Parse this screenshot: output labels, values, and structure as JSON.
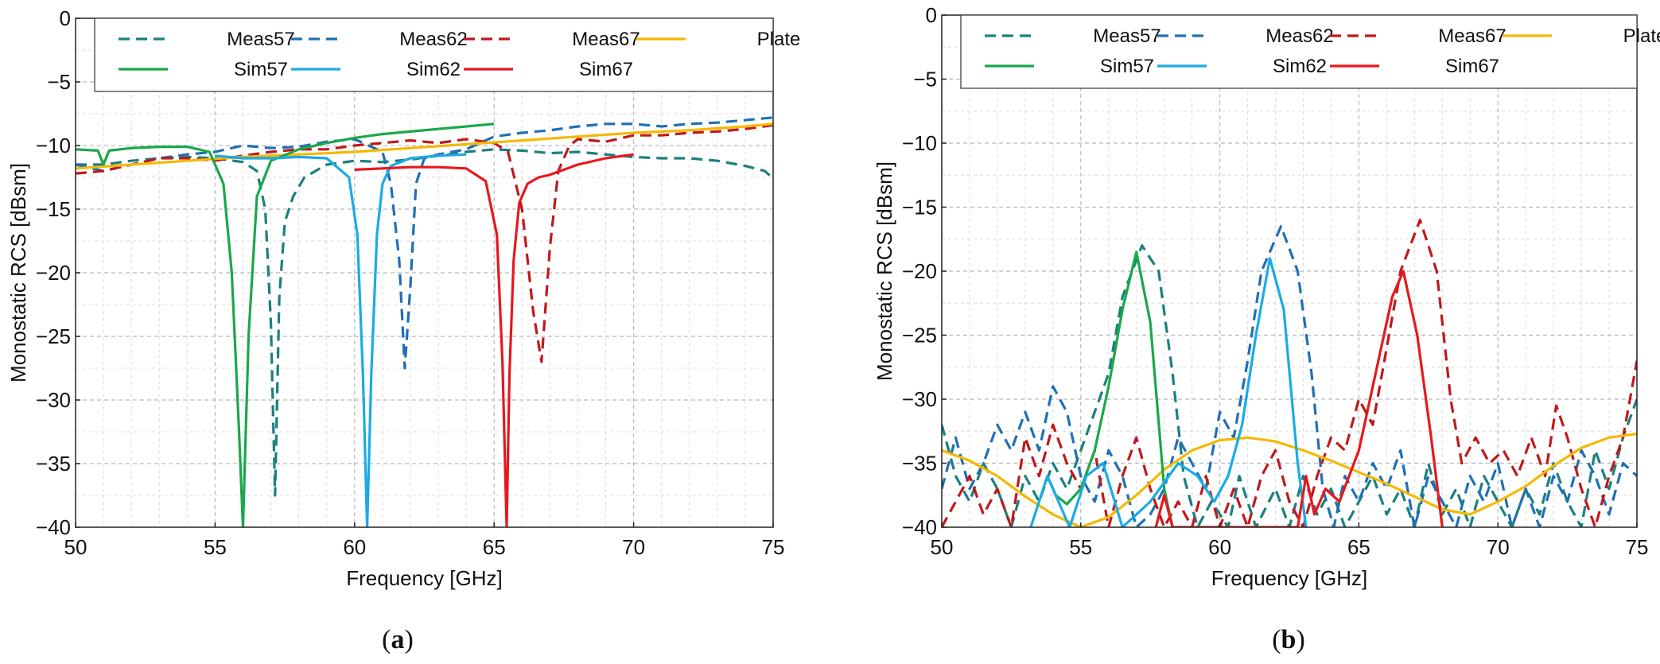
{
  "colors": {
    "meas57": "#1b7f7f",
    "meas62": "#1f6fb5",
    "meas67": "#c0181c",
    "sim57": "#1aa84a",
    "sim62": "#1aabe6",
    "sim67": "#e8171d",
    "plate": "#f5b800"
  },
  "chart_data": [
    {
      "type": "line",
      "panel_label": "a",
      "title": "",
      "xlabel": "Frequency [GHz]",
      "ylabel": "Monostatic RCS [dBsm]",
      "xlim": [
        50,
        75
      ],
      "ylim": [
        -40,
        0
      ],
      "xticks": [
        "50",
        "55",
        "60",
        "65",
        "70",
        "75"
      ],
      "yticks": [
        "0",
        "−5",
        "−10",
        "−15",
        "−20",
        "−25",
        "−30",
        "−35",
        "−40"
      ],
      "legend": [
        "Meas57",
        "Meas62",
        "Meas67",
        "Plate",
        "Sim57",
        "Sim62",
        "Sim67"
      ],
      "series": [
        {
          "name": "Meas57",
          "color_key": "meas57",
          "style": "dashed",
          "x": [
            50,
            51,
            52,
            53,
            54,
            55,
            56,
            56.5,
            56.8,
            57.0,
            57.15,
            57.3,
            57.5,
            57.8,
            58.2,
            59,
            60,
            61,
            62,
            63,
            64,
            65,
            66,
            67,
            68,
            69,
            70,
            71,
            72,
            73,
            74,
            74.7,
            75
          ],
          "y": [
            -11.5,
            -11.5,
            -11.2,
            -11,
            -10.9,
            -11,
            -11.3,
            -12,
            -15,
            -24,
            -37.5,
            -22,
            -16,
            -14,
            -12.5,
            -11.5,
            -11.2,
            -11.3,
            -11.1,
            -10.8,
            -10.5,
            -10.3,
            -10.4,
            -10.6,
            -10.5,
            -10.7,
            -10.9,
            -11,
            -11,
            -11.2,
            -11.6,
            -12,
            -12.6
          ]
        },
        {
          "name": "Meas62",
          "color_key": "meas62",
          "style": "dashed",
          "x": [
            50,
            51,
            52,
            53,
            54,
            55,
            56,
            57,
            58,
            59,
            60,
            61,
            61.3,
            61.6,
            61.8,
            62.0,
            62.2,
            62.5,
            63,
            64,
            65,
            66,
            67,
            68,
            69,
            70,
            71,
            72,
            73,
            74,
            75
          ],
          "y": [
            -11.5,
            -12,
            -11.5,
            -11,
            -10.7,
            -10.5,
            -10,
            -10.2,
            -10.1,
            -9.7,
            -9.5,
            -10.5,
            -13,
            -19,
            -27.5,
            -21,
            -13,
            -11,
            -10.7,
            -10.3,
            -9.3,
            -9,
            -8.8,
            -8.5,
            -8.3,
            -8.3,
            -8.5,
            -8.3,
            -8.2,
            -8.0,
            -7.8
          ]
        },
        {
          "name": "Meas67",
          "color_key": "meas67",
          "style": "dashed",
          "x": [
            50,
            51,
            52,
            53,
            54,
            55,
            56,
            57,
            58,
            59,
            60,
            61,
            62,
            63,
            64,
            65,
            65.5,
            66,
            66.4,
            66.7,
            67.0,
            67.3,
            67.7,
            68,
            69,
            70,
            71,
            72,
            73,
            74,
            75
          ],
          "y": [
            -12.2,
            -12,
            -11.5,
            -11,
            -11,
            -11.2,
            -10.8,
            -10.5,
            -10.3,
            -10.3,
            -10,
            -9.8,
            -9.6,
            -9.8,
            -9.5,
            -9.8,
            -10.5,
            -15,
            -23,
            -27,
            -18,
            -12,
            -10,
            -9.5,
            -9.7,
            -9.2,
            -9.2,
            -9.0,
            -8.9,
            -8.7,
            -8.4
          ]
        },
        {
          "name": "Plate",
          "color_key": "plate",
          "style": "solid",
          "x": [
            50,
            52,
            54,
            56,
            58,
            60,
            62,
            64,
            66,
            68,
            70,
            72,
            74,
            75
          ],
          "y": [
            -11.8,
            -11.5,
            -11.2,
            -10.9,
            -10.7,
            -10.5,
            -10.2,
            -9.9,
            -9.6,
            -9.3,
            -9,
            -8.8,
            -8.5,
            -8.3
          ]
        },
        {
          "name": "Sim57",
          "color_key": "sim57",
          "style": "solid",
          "x": [
            50,
            50.8,
            51.0,
            51.2,
            52,
            53,
            54,
            54.8,
            55.3,
            55.6,
            55.85,
            56.0,
            56.2,
            56.5,
            57,
            58,
            59,
            60,
            61,
            62,
            63,
            64,
            65
          ],
          "y": [
            -10.3,
            -10.4,
            -11.5,
            -10.4,
            -10.2,
            -10.1,
            -10.1,
            -10.5,
            -13,
            -20,
            -32,
            -40,
            -25,
            -14,
            -11.2,
            -10.3,
            -9.8,
            -9.4,
            -9.1,
            -8.9,
            -8.7,
            -8.5,
            -8.3
          ]
        },
        {
          "name": "Sim62",
          "color_key": "sim62",
          "style": "solid",
          "x": [
            55,
            56,
            57,
            58,
            59,
            59.8,
            60.1,
            60.3,
            60.45,
            60.6,
            60.8,
            61.0,
            61.3,
            62,
            63,
            64
          ],
          "y": [
            -10.8,
            -11,
            -11,
            -10.9,
            -11,
            -12.5,
            -17,
            -28,
            -40,
            -28,
            -17,
            -13,
            -11.6,
            -11,
            -10.8,
            -10.7
          ]
        },
        {
          "name": "Sim67",
          "color_key": "sim67",
          "style": "solid",
          "x": [
            60,
            61,
            62,
            63,
            64,
            64.7,
            65.1,
            65.3,
            65.45,
            65.55,
            65.7,
            65.9,
            66.2,
            66.6,
            67,
            67.5,
            68,
            69,
            70
          ],
          "y": [
            -11.9,
            -11.8,
            -11.7,
            -11.7,
            -11.8,
            -12.8,
            -17,
            -27,
            -40,
            -28,
            -19,
            -14.5,
            -13,
            -12.5,
            -12.3,
            -11.9,
            -11.5,
            -11.0,
            -10.7
          ]
        }
      ]
    },
    {
      "type": "line",
      "panel_label": "b",
      "title": "",
      "xlabel": "Frequency [GHz]",
      "ylabel": "Monostatic RCS [dBsm]",
      "xlim": [
        50,
        75
      ],
      "ylim": [
        -40,
        0
      ],
      "xticks": [
        "50",
        "55",
        "60",
        "65",
        "70",
        "75"
      ],
      "yticks": [
        "0",
        "−5",
        "−10",
        "−15",
        "−20",
        "−25",
        "−30",
        "−35",
        "−40"
      ],
      "legend": [
        "Meas57",
        "Meas62",
        "Meas67",
        "Plate",
        "Sim57",
        "Sim62",
        "Sim67"
      ],
      "series": [
        {
          "name": "Meas57",
          "color_key": "meas57",
          "style": "dashed",
          "x": [
            50,
            50.5,
            51,
            51.5,
            52,
            52.5,
            53,
            53.5,
            54,
            54.5,
            55,
            55.5,
            56,
            56.5,
            57.2,
            57.8,
            58.3,
            58.7,
            59.2,
            59.7,
            60.3,
            60.7,
            61.3,
            62,
            62.5,
            63,
            63.5,
            64,
            64.5,
            65,
            65.5,
            66,
            66.5,
            67,
            67.5,
            68,
            68.5,
            69,
            69.5,
            70,
            70.5,
            71,
            71.5,
            72,
            72.5,
            73,
            73.5,
            74,
            74.5,
            75
          ],
          "y": [
            -32,
            -36,
            -38,
            -35,
            -37,
            -40,
            -36,
            -38,
            -35,
            -37,
            -34,
            -31,
            -28,
            -22,
            -18,
            -20,
            -28,
            -36,
            -40,
            -38,
            -40,
            -36,
            -40,
            -37,
            -40,
            -36,
            -39,
            -37,
            -40,
            -38,
            -36,
            -39,
            -37,
            -40,
            -35,
            -39,
            -37,
            -40,
            -36,
            -38,
            -40,
            -37,
            -39,
            -35,
            -38,
            -40,
            -34,
            -37,
            -33,
            -30
          ]
        },
        {
          "name": "Meas62",
          "color_key": "meas62",
          "style": "dashed",
          "x": [
            50,
            50.5,
            51,
            51.5,
            52,
            52.5,
            53,
            53.5,
            54,
            54.5,
            55,
            55.5,
            56,
            56.5,
            57,
            57.5,
            58,
            58.5,
            59,
            59.5,
            60,
            60.5,
            61,
            61.5,
            62.2,
            62.8,
            63.3,
            63.7,
            64.1,
            64.5,
            65,
            65.5,
            66,
            66.5,
            67,
            67.5,
            68,
            68.5,
            69,
            69.5,
            70,
            70.5,
            71,
            71.5,
            72,
            72.5,
            73,
            73.5,
            74,
            74.5,
            75
          ],
          "y": [
            -37,
            -33,
            -37,
            -35,
            -32,
            -34,
            -31,
            -34,
            -29,
            -31,
            -36,
            -38,
            -34,
            -36,
            -40,
            -39,
            -37,
            -33,
            -35,
            -37,
            -31,
            -33,
            -27,
            -20,
            -16.5,
            -20,
            -28,
            -37,
            -40,
            -36,
            -38,
            -35,
            -37,
            -34,
            -40,
            -36,
            -38,
            -40,
            -36,
            -38,
            -35,
            -40,
            -37,
            -40,
            -36,
            -38,
            -34,
            -36,
            -39,
            -35,
            -36
          ]
        },
        {
          "name": "Meas67",
          "color_key": "meas67",
          "style": "dashed",
          "x": [
            50,
            50.5,
            51,
            51.5,
            52,
            52.5,
            53,
            53.5,
            54,
            54.5,
            55,
            55.5,
            56,
            56.5,
            57,
            57.5,
            58,
            58.5,
            59,
            59.5,
            60,
            60.5,
            61,
            61.5,
            62,
            62.5,
            63,
            63.5,
            64,
            64.5,
            65,
            65.5,
            66,
            66.5,
            67.2,
            67.8,
            68.3,
            68.7,
            69.2,
            69.7,
            70.2,
            70.7,
            71.2,
            71.7,
            72.1,
            72.5,
            73,
            73.5,
            74,
            74.5,
            75
          ],
          "y": [
            -40,
            -38,
            -36,
            -39,
            -37,
            -40,
            -33,
            -36,
            -32,
            -35,
            -37,
            -34,
            -40,
            -36,
            -33,
            -37,
            -40,
            -38,
            -40,
            -36,
            -40,
            -37,
            -40,
            -36,
            -34,
            -38,
            -40,
            -36,
            -33,
            -34,
            -30,
            -32,
            -26,
            -20,
            -16,
            -20,
            -30,
            -35,
            -33,
            -35,
            -34,
            -36,
            -33,
            -36,
            -30.5,
            -33,
            -37,
            -40,
            -36,
            -33,
            -27
          ]
        },
        {
          "name": "Plate",
          "color_key": "plate",
          "style": "solid",
          "x": [
            50,
            51,
            52,
            53,
            54,
            55,
            56,
            57,
            58,
            59,
            60,
            61,
            62,
            63,
            64,
            65,
            66,
            67,
            68,
            69,
            70,
            71,
            72,
            73,
            74,
            75
          ],
          "y": [
            -34,
            -34.8,
            -36,
            -37.6,
            -39,
            -40,
            -39.2,
            -37.5,
            -35.5,
            -34,
            -33.2,
            -33,
            -33.3,
            -34,
            -34.8,
            -35.7,
            -36.6,
            -37.6,
            -38.6,
            -39,
            -38,
            -36.8,
            -35.2,
            -33.8,
            -33,
            -32.7
          ]
        },
        {
          "name": "Sim57",
          "color_key": "sim57",
          "style": "solid",
          "x": [
            53.8,
            54.1,
            54.5,
            55,
            55.5,
            56,
            56.5,
            57,
            57.5,
            58,
            58.3
          ],
          "y": [
            -36,
            -37.5,
            -38.2,
            -37,
            -34,
            -29,
            -23,
            -18.5,
            -24,
            -37,
            -40
          ]
        },
        {
          "name": "Sim62",
          "color_key": "sim62",
          "style": "solid",
          "x": [
            53.2,
            53.8,
            54.2,
            54.6,
            55.2,
            55.8,
            56.5,
            57.5,
            58.5,
            59.2,
            59.8,
            60.3,
            60.8,
            61.3,
            61.8,
            62.3,
            62.8,
            63.1
          ],
          "y": [
            -40,
            -36,
            -38,
            -40,
            -36,
            -35,
            -40,
            -38,
            -35,
            -36,
            -38,
            -36,
            -32,
            -25,
            -19,
            -23,
            -35,
            -40
          ]
        },
        {
          "name": "Sim67",
          "color_key": "sim67",
          "style": "solid",
          "x": [
            57.7,
            58.0,
            58.3,
            62.8,
            63.1,
            63.4,
            63.8,
            64.3,
            65,
            65.7,
            66.2,
            66.6,
            67.1,
            67.6,
            68.0
          ],
          "y": [
            -40,
            -37.5,
            -40,
            -40,
            -36,
            -39,
            -37,
            -38,
            -34,
            -27,
            -22,
            -20,
            -25,
            -33,
            -40
          ]
        }
      ]
    }
  ]
}
